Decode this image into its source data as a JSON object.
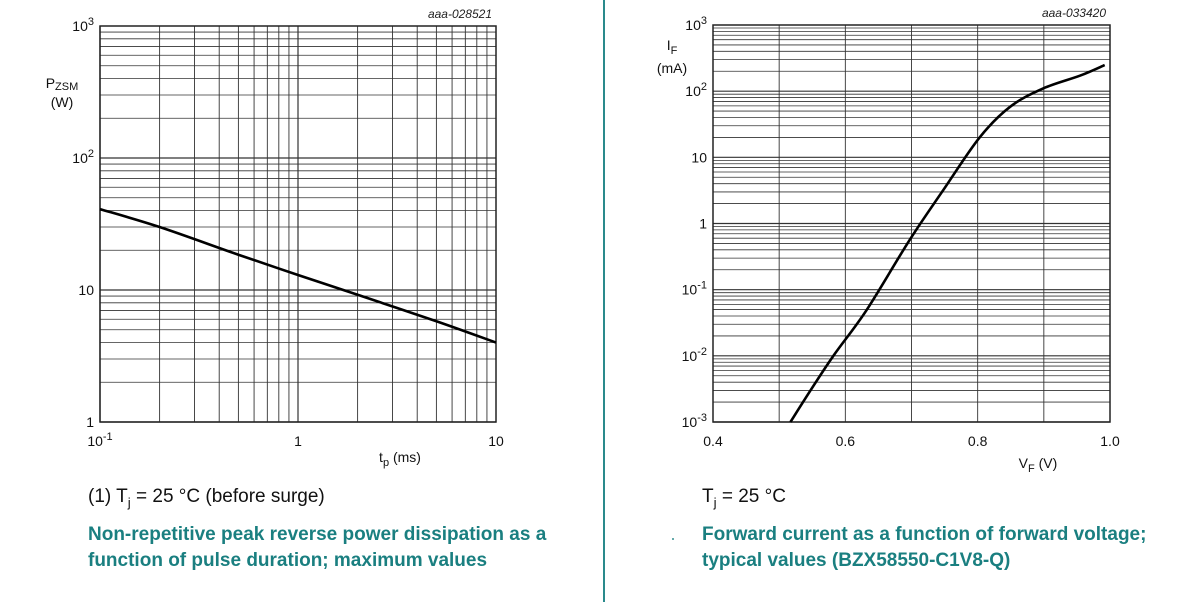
{
  "chart_data": [
    {
      "type": "line",
      "id_label": "aaa-028521",
      "x_scale": "log",
      "y_scale": "log",
      "xlim": [
        0.1,
        10
      ],
      "ylim": [
        1,
        1000
      ],
      "grid": true,
      "xlabel": {
        "symbol": "t",
        "sub": "p",
        "unit": "(ms)"
      },
      "ylabel": {
        "symbol": "P",
        "sub": "ZSM",
        "unit": "(W)"
      },
      "xticks": [
        {
          "base": "10",
          "exp": "-1"
        },
        {
          "base": "1",
          "exp": ""
        },
        {
          "base": "10",
          "exp": ""
        }
      ],
      "yticks": [
        {
          "base": "1",
          "exp": ""
        },
        {
          "base": "10",
          "exp": ""
        },
        {
          "base": "10",
          "exp": "2"
        },
        {
          "base": "10",
          "exp": "3"
        }
      ],
      "series": [
        {
          "x": [
            0.1,
            0.2,
            0.5,
            1,
            2,
            5,
            10
          ],
          "y": [
            41,
            30,
            18.5,
            13,
            9.2,
            5.8,
            4.0
          ]
        }
      ],
      "line_color": "#000000"
    },
    {
      "type": "line",
      "id_label": "aaa-033420",
      "x_scale": "linear",
      "y_scale": "log",
      "xlim": [
        0.4,
        1.0
      ],
      "ylim": [
        0.001,
        1000
      ],
      "grid": true,
      "xlabel": {
        "symbol": "V",
        "sub": "F",
        "unit": "(V)"
      },
      "ylabel": {
        "symbol": "I",
        "sub": "F",
        "unit": "(mA)"
      },
      "xticks": [
        {
          "base": "0.4",
          "exp": ""
        },
        {
          "base": "0.6",
          "exp": ""
        },
        {
          "base": "0.8",
          "exp": ""
        },
        {
          "base": "1.0",
          "exp": ""
        }
      ],
      "yticks": [
        {
          "base": "10",
          "exp": "-3"
        },
        {
          "base": "10",
          "exp": "-2"
        },
        {
          "base": "10",
          "exp": "-1"
        },
        {
          "base": "1",
          "exp": ""
        },
        {
          "base": "10",
          "exp": ""
        },
        {
          "base": "10",
          "exp": "2"
        },
        {
          "base": "10",
          "exp": "3"
        }
      ],
      "series": [
        {
          "x": [
            0.517,
            0.55,
            0.584,
            0.632,
            0.697,
            0.748,
            0.803,
            0.849,
            0.899,
            0.955,
            0.992
          ],
          "y": [
            0.001,
            0.0033,
            0.0107,
            0.049,
            0.56,
            3.2,
            20,
            58,
            110,
            172,
            248
          ]
        }
      ],
      "line_color": "#000000"
    }
  ],
  "captions": {
    "left_note_prefix": "(1) T",
    "left_note_sub": "j",
    "left_note_suffix": " = 25 °C (before surge)",
    "left_title": "Non-repetitive peak reverse power dissipation as a function of pulse duration; maximum values",
    "right_note_prefix": "T",
    "right_note_sub": "j",
    "right_note_suffix": " = 25 °C",
    "right_title": "Forward current as a function of forward voltage; typical values (BZX58550-C1V8-Q)"
  },
  "colors": {
    "title": "#1a7f80",
    "divider": "#2a8a8c",
    "grid": "#333333"
  }
}
